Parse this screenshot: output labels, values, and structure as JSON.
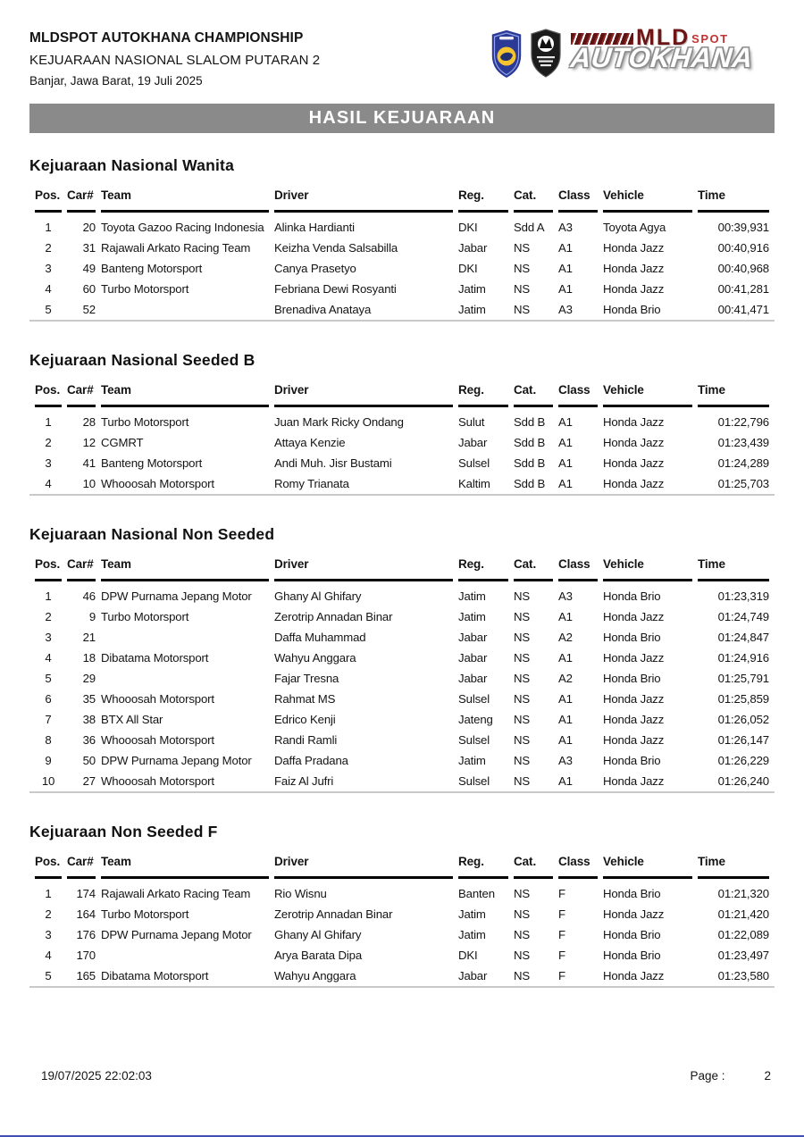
{
  "header": {
    "title": "MLDSPOT AUTOKHANA CHAMPIONSHIP",
    "subtitle": "KEJUARAAN NASIONAL SLALOM PUTARAN 2",
    "location_date": "Banjar, Jawa Barat, 19 Juli 2025",
    "logo": {
      "mld": "MLD",
      "spot": "SPOT",
      "autokhana": "AUTOKHANA"
    }
  },
  "banner": {
    "title": "HASIL KEJUARAAN"
  },
  "columns": [
    "Pos.",
    "Car#",
    "Team",
    "Driver",
    "Reg.",
    "Cat.",
    "Class",
    "Vehicle",
    "Time"
  ],
  "sections": [
    {
      "title": "Kejuaraan Nasional Wanita",
      "rows": [
        [
          "1",
          "20",
          "Toyota Gazoo Racing Indonesia",
          "Alinka Hardianti",
          "DKI",
          "Sdd A",
          "A3",
          "Toyota Agya",
          "00:39,931"
        ],
        [
          "2",
          "31",
          "Rajawali Arkato Racing Team",
          "Keizha Venda Salsabilla",
          "Jabar",
          "NS",
          "A1",
          "Honda Jazz",
          "00:40,916"
        ],
        [
          "3",
          "49",
          "Banteng Motorsport",
          "Canya Prasetyo",
          "DKI",
          "NS",
          "A1",
          "Honda Jazz",
          "00:40,968"
        ],
        [
          "4",
          "60",
          "Turbo Motorsport",
          "Febriana Dewi Rosyanti",
          "Jatim",
          "NS",
          "A1",
          "Honda Jazz",
          "00:41,281"
        ],
        [
          "5",
          "52",
          "",
          "Brenadiva Anataya",
          "Jatim",
          "NS",
          "A3",
          "Honda Brio",
          "00:41,471"
        ]
      ]
    },
    {
      "title": "Kejuaraan Nasional Seeded B",
      "rows": [
        [
          "1",
          "28",
          "Turbo Motorsport",
          "Juan Mark Ricky Ondang",
          "Sulut",
          "Sdd B",
          "A1",
          "Honda Jazz",
          "01:22,796"
        ],
        [
          "2",
          "12",
          "CGMRT",
          "Attaya Kenzie",
          "Jabar",
          "Sdd B",
          "A1",
          "Honda Jazz",
          "01:23,439"
        ],
        [
          "3",
          "41",
          "Banteng Motorsport",
          "Andi Muh. Jisr Bustami",
          "Sulsel",
          "Sdd B",
          "A1",
          "Honda Jazz",
          "01:24,289"
        ],
        [
          "4",
          "10",
          "Whooosah Motorsport",
          "Romy Trianata",
          "Kaltim",
          "Sdd B",
          "A1",
          "Honda Jazz",
          "01:25,703"
        ]
      ]
    },
    {
      "title": "Kejuaraan Nasional Non Seeded",
      "rows": [
        [
          "1",
          "46",
          "DPW Purnama Jepang Motor",
          "Ghany Al Ghifary",
          "Jatim",
          "NS",
          "A3",
          "Honda Brio",
          "01:23,319"
        ],
        [
          "2",
          "9",
          "Turbo Motorsport",
          "Zerotrip Annadan Binar",
          "Jatim",
          "NS",
          "A1",
          "Honda Jazz",
          "01:24,749"
        ],
        [
          "3",
          "21",
          "",
          "Daffa Muhammad",
          "Jabar",
          "NS",
          "A2",
          "Honda Brio",
          "01:24,847"
        ],
        [
          "4",
          "18",
          "Dibatama Motorsport",
          "Wahyu Anggara",
          "Jabar",
          "NS",
          "A1",
          "Honda Jazz",
          "01:24,916"
        ],
        [
          "5",
          "29",
          "",
          "Fajar Tresna",
          "Jabar",
          "NS",
          "A2",
          "Honda Brio",
          "01:25,791"
        ],
        [
          "6",
          "35",
          "Whooosah Motorsport",
          "Rahmat MS",
          "Sulsel",
          "NS",
          "A1",
          "Honda Jazz",
          "01:25,859"
        ],
        [
          "7",
          "38",
          "BTX All Star",
          "Edrico Kenji",
          "Jateng",
          "NS",
          "A1",
          "Honda Jazz",
          "01:26,052"
        ],
        [
          "8",
          "36",
          "Whooosah Motorsport",
          "Randi Ramli",
          "Sulsel",
          "NS",
          "A1",
          "Honda Jazz",
          "01:26,147"
        ],
        [
          "9",
          "50",
          "DPW Purnama Jepang Motor",
          "Daffa Pradana",
          "Jatim",
          "NS",
          "A3",
          "Honda Brio",
          "01:26,229"
        ],
        [
          "10",
          "27",
          "Whooosah Motorsport",
          "Faiz Al Jufri",
          "Sulsel",
          "NS",
          "A1",
          "Honda Jazz",
          "01:26,240"
        ]
      ]
    },
    {
      "title": "Kejuaraan Non Seeded F",
      "rows": [
        [
          "1",
          "174",
          "Rajawali Arkato Racing Team",
          "Rio Wisnu",
          "Banten",
          "NS",
          "F",
          "Honda Brio",
          "01:21,320"
        ],
        [
          "2",
          "164",
          "Turbo Motorsport",
          "Zerotrip Annadan Binar",
          "Jatim",
          "NS",
          "F",
          "Honda Jazz",
          "01:21,420"
        ],
        [
          "3",
          "176",
          "DPW Purnama Jepang Motor",
          "Ghany Al Ghifary",
          "Jatim",
          "NS",
          "F",
          "Honda Brio",
          "01:22,089"
        ],
        [
          "4",
          "170",
          "",
          "Arya Barata Dipa",
          "DKI",
          "NS",
          "F",
          "Honda Brio",
          "01:23,497"
        ],
        [
          "5",
          "165",
          "Dibatama Motorsport",
          "Wahyu Anggara",
          "Jabar",
          "NS",
          "F",
          "Honda Jazz",
          "01:23,580"
        ]
      ]
    }
  ],
  "footer": {
    "timestamp": "19/07/2025 22:02:03",
    "page_label": "Page :",
    "page_number": "2"
  },
  "colors": {
    "banner_bg": "#8a8a8a",
    "header_rule": "#000000",
    "table_end_rule": "#c9c9c9",
    "logo_maroon": "#6e1515",
    "logo_red": "#c03434",
    "badge_blue": "#2b3a96",
    "badge_yellow": "#f4c431",
    "bottom_line_blue": "#3f51b5"
  },
  "icons": {
    "badge1": "imi-blue-shield-badge",
    "badge2": "event-black-crest-badge"
  }
}
